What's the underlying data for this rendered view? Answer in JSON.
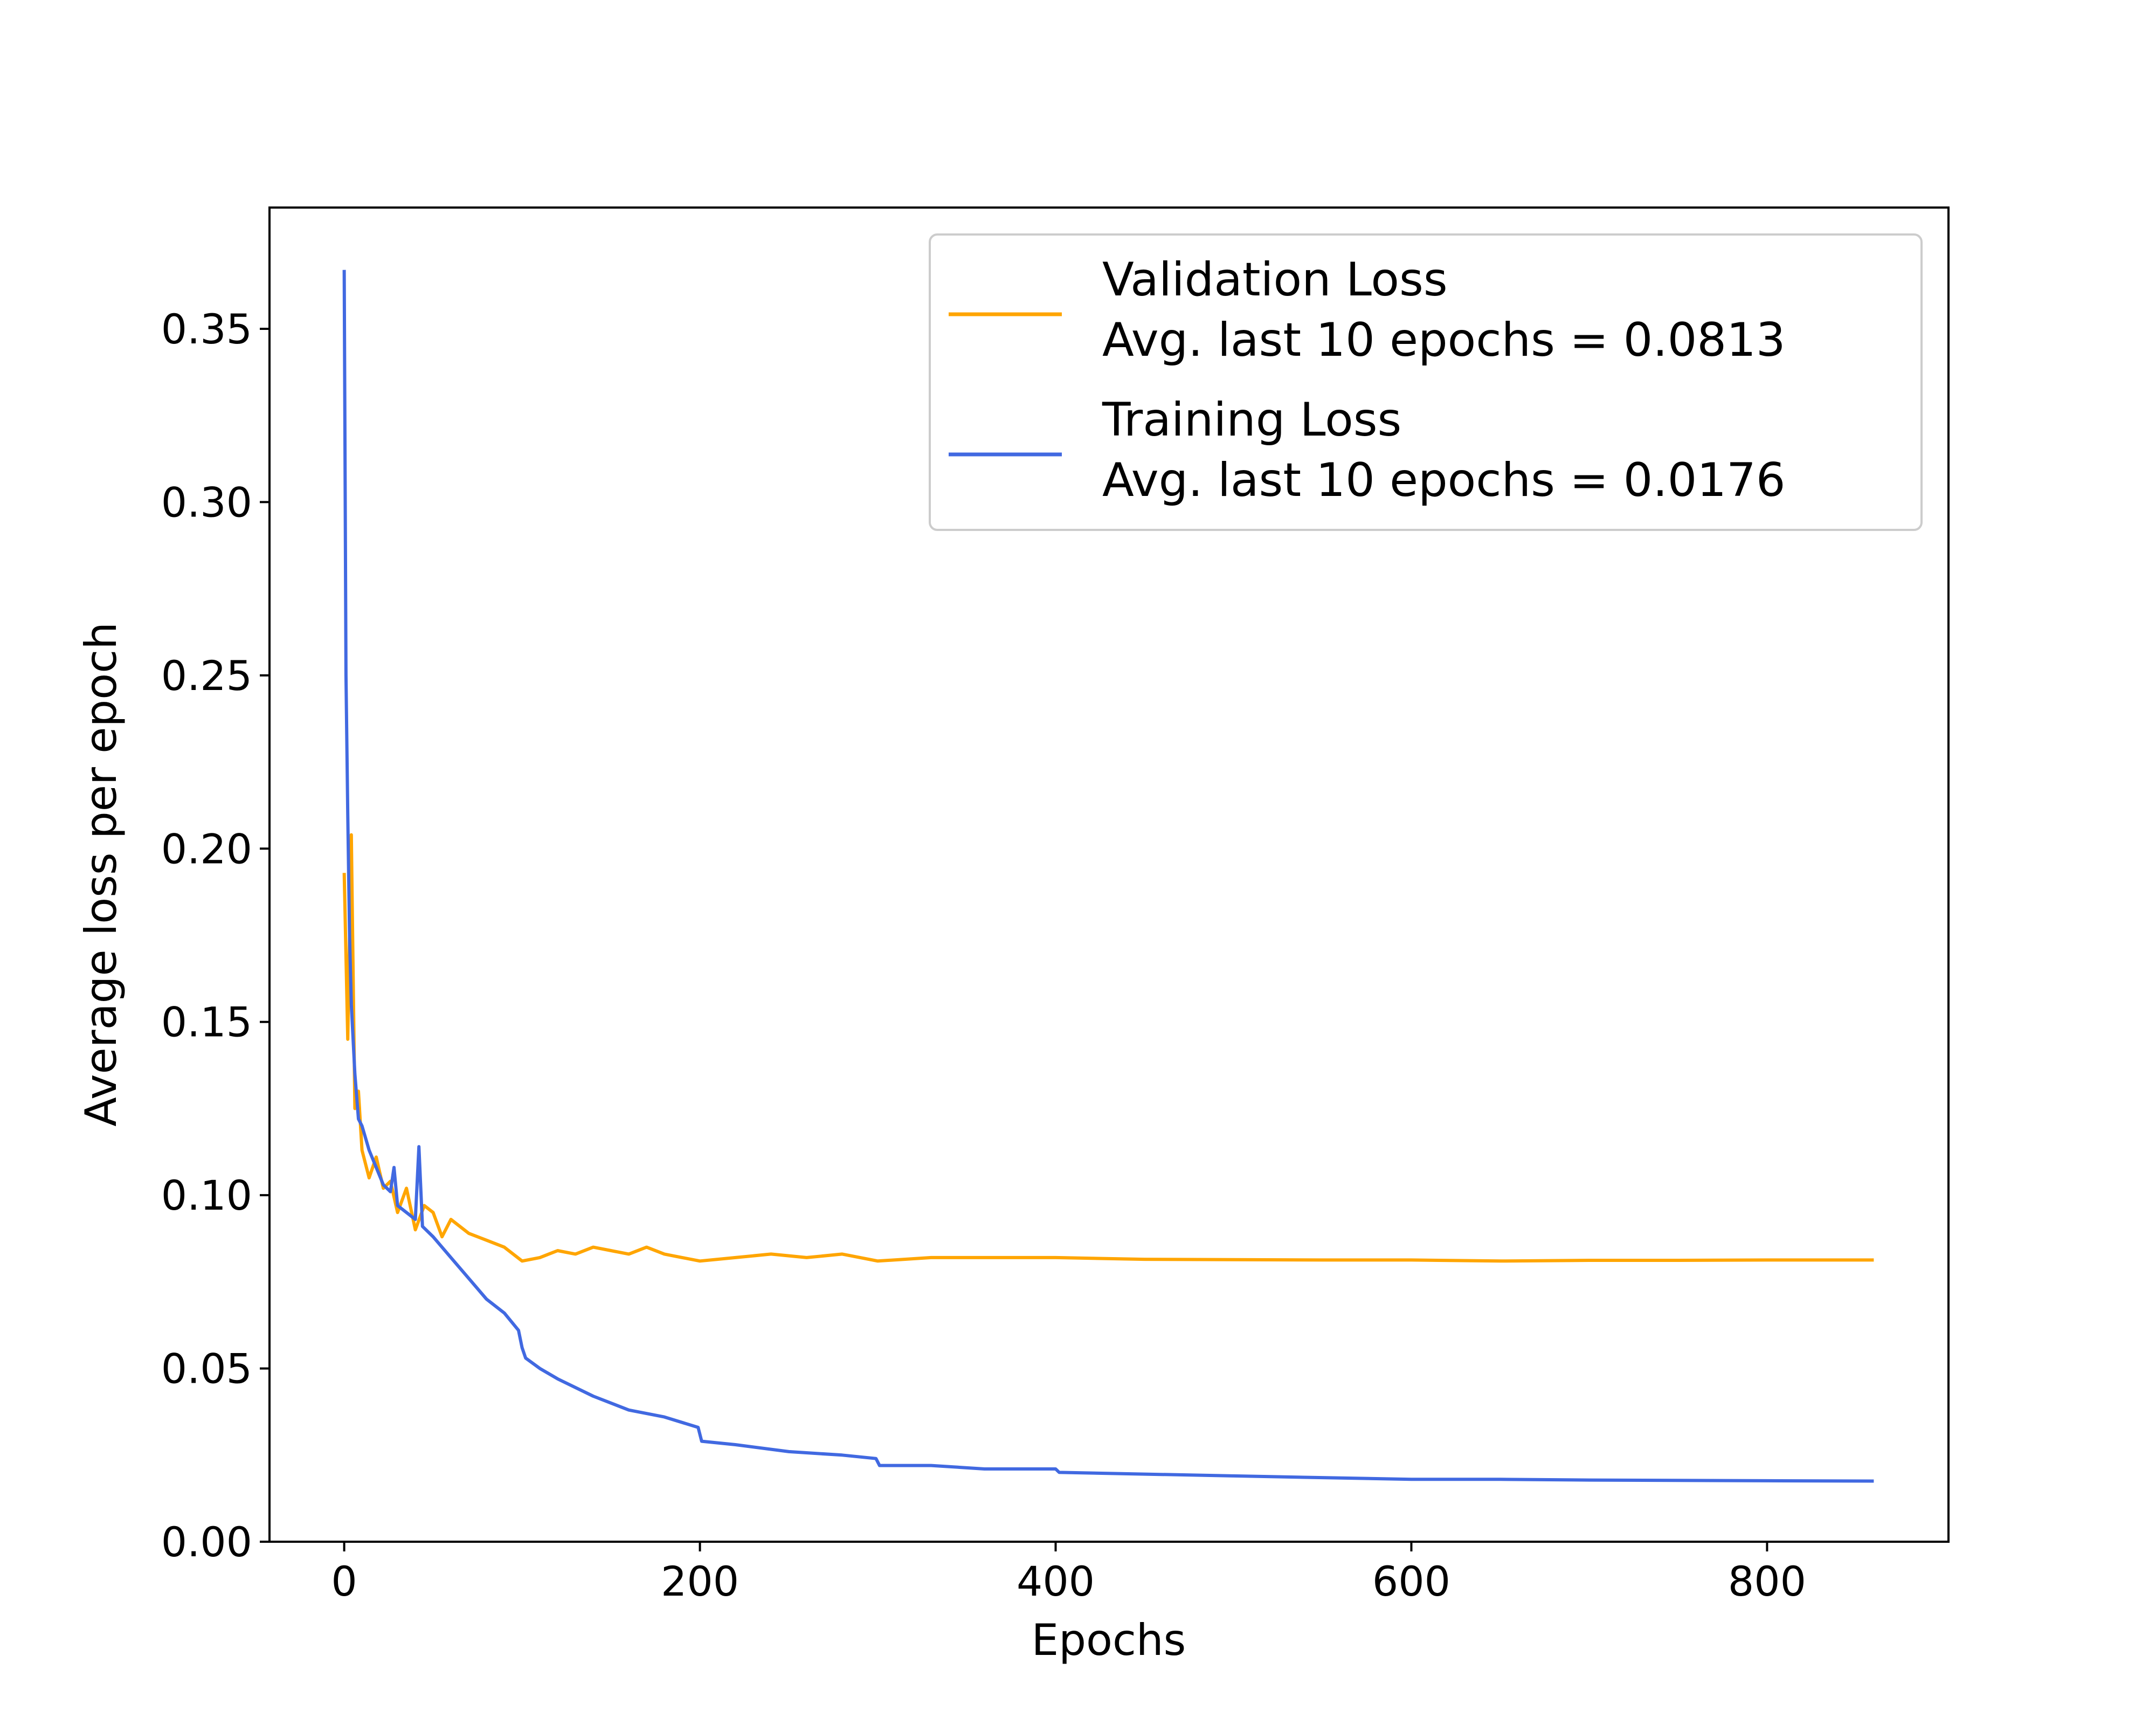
{
  "chart_data": {
    "type": "line",
    "title": "",
    "xlabel": "Epochs",
    "ylabel": "Average loss per epoch",
    "xlim": [
      -42,
      902
    ],
    "ylim": [
      0,
      0.385
    ],
    "xticks": [
      0,
      200,
      400,
      600,
      800
    ],
    "xtick_labels": [
      "0",
      "200",
      "400",
      "600",
      "800"
    ],
    "yticks": [
      0.0,
      0.05,
      0.1,
      0.15,
      0.2,
      0.25,
      0.3,
      0.35
    ],
    "ytick_labels": [
      "0.00",
      "0.05",
      "0.10",
      "0.15",
      "0.20",
      "0.25",
      "0.30",
      "0.35"
    ],
    "grid": false,
    "legend_position": "top-right",
    "series": [
      {
        "name": "Validation Loss",
        "legend_lines": [
          "Validation Loss",
          "Avg. last 10 epochs = 0.0813"
        ],
        "color": "#FFA500",
        "x": [
          0,
          2,
          4,
          6,
          8,
          10,
          14,
          18,
          22,
          26,
          30,
          35,
          40,
          45,
          50,
          55,
          60,
          70,
          80,
          90,
          100,
          110,
          120,
          130,
          140,
          150,
          160,
          170,
          180,
          190,
          200,
          220,
          240,
          260,
          280,
          300,
          330,
          360,
          400,
          450,
          500,
          550,
          600,
          650,
          700,
          750,
          800,
          860
        ],
        "y": [
          0.193,
          0.145,
          0.204,
          0.125,
          0.13,
          0.113,
          0.105,
          0.111,
          0.102,
          0.104,
          0.095,
          0.102,
          0.09,
          0.097,
          0.095,
          0.088,
          0.093,
          0.089,
          0.087,
          0.085,
          0.081,
          0.082,
          0.084,
          0.083,
          0.085,
          0.084,
          0.083,
          0.085,
          0.083,
          0.082,
          0.081,
          0.082,
          0.083,
          0.082,
          0.083,
          0.081,
          0.082,
          0.082,
          0.082,
          0.0815,
          0.0814,
          0.0813,
          0.0813,
          0.081,
          0.0812,
          0.0812,
          0.0813,
          0.0813
        ]
      },
      {
        "name": "Training Loss",
        "legend_lines": [
          "Training Loss",
          "Avg. last 10 epochs = 0.0176"
        ],
        "color": "#4169E1",
        "x": [
          0,
          1,
          2,
          3,
          4,
          6,
          8,
          10,
          14,
          18,
          22,
          26,
          28,
          30,
          35,
          40,
          42,
          44,
          50,
          60,
          70,
          80,
          90,
          98,
          100,
          102,
          110,
          120,
          140,
          160,
          180,
          199,
          201,
          220,
          250,
          280,
          299,
          301,
          330,
          360,
          400,
          402,
          450,
          500,
          550,
          600,
          650,
          700,
          750,
          800,
          860
        ],
        "y": [
          0.367,
          0.25,
          0.21,
          0.175,
          0.155,
          0.135,
          0.122,
          0.12,
          0.113,
          0.108,
          0.103,
          0.101,
          0.108,
          0.097,
          0.095,
          0.093,
          0.114,
          0.091,
          0.088,
          0.082,
          0.076,
          0.07,
          0.066,
          0.061,
          0.056,
          0.053,
          0.05,
          0.047,
          0.042,
          0.038,
          0.036,
          0.033,
          0.029,
          0.028,
          0.026,
          0.025,
          0.024,
          0.022,
          0.022,
          0.021,
          0.021,
          0.02,
          0.0195,
          0.019,
          0.0185,
          0.018,
          0.018,
          0.0178,
          0.0177,
          0.0176,
          0.0175
        ]
      }
    ]
  }
}
